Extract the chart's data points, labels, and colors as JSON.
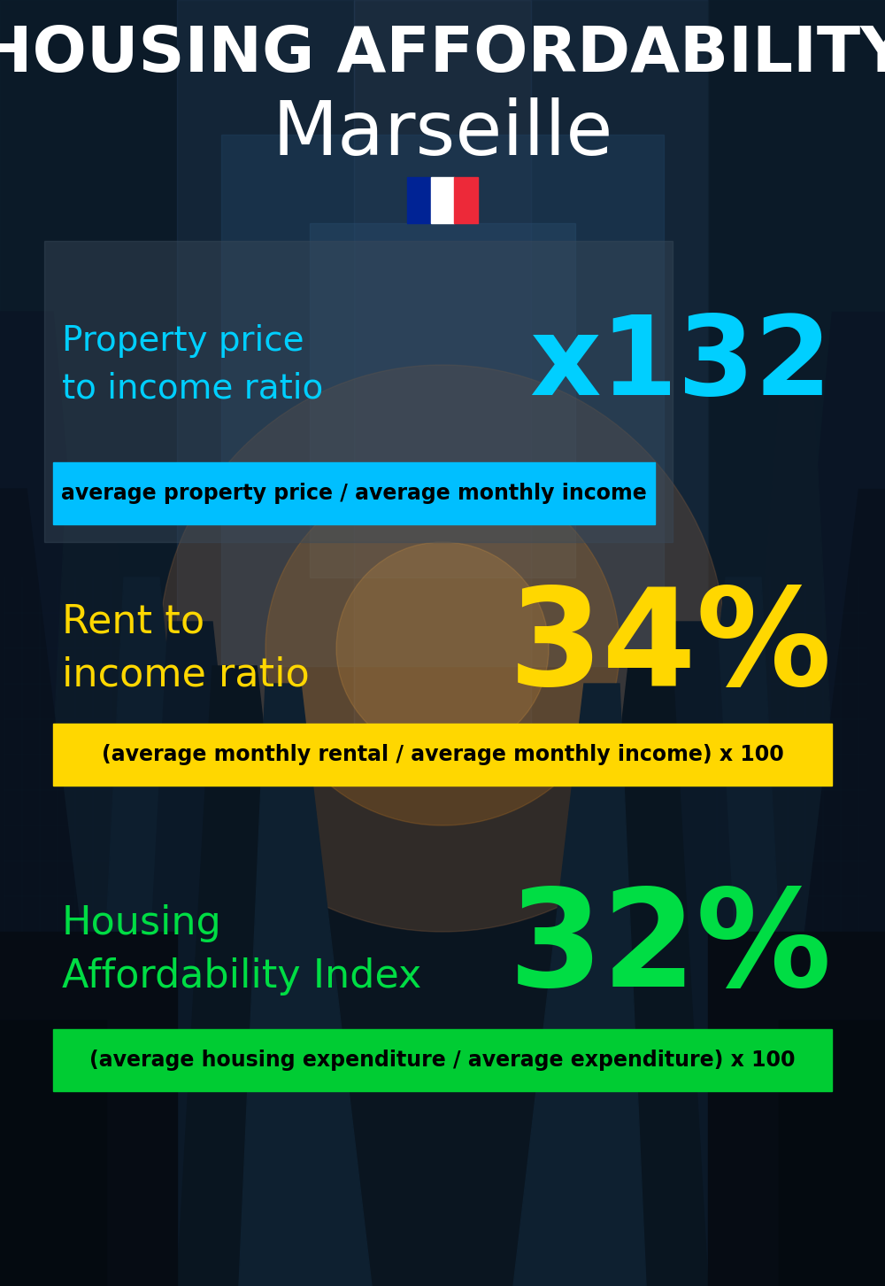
{
  "title_main": "HOUSING AFFORDABILITY",
  "title_city": "Marseille",
  "bg_color": "#080e18",
  "section1_label": "Property price\nto income ratio",
  "section1_value": "x132",
  "section1_label_color": "#00cfff",
  "section1_value_color": "#00cfff",
  "section1_band_color": "#00bfff",
  "section1_band_text": "average property price / average monthly income",
  "section2_label": "Rent to\nincome ratio",
  "section2_value": "34%",
  "section2_label_color": "#FFD700",
  "section2_value_color": "#FFD700",
  "section2_band_color": "#FFD700",
  "section2_band_text": "(average monthly rental / average monthly income) x 100",
  "section3_label": "Housing\nAffordability Index",
  "section3_value": "32%",
  "section3_label_color": "#00dd44",
  "section3_value_color": "#00dd44",
  "section3_band_color": "#00cc33",
  "section3_band_text": "(average housing expenditure / average expenditure) x 100",
  "flag_colors": [
    "#002395",
    "#ffffff",
    "#ED2939"
  ],
  "white": "#ffffff",
  "black": "#000000"
}
